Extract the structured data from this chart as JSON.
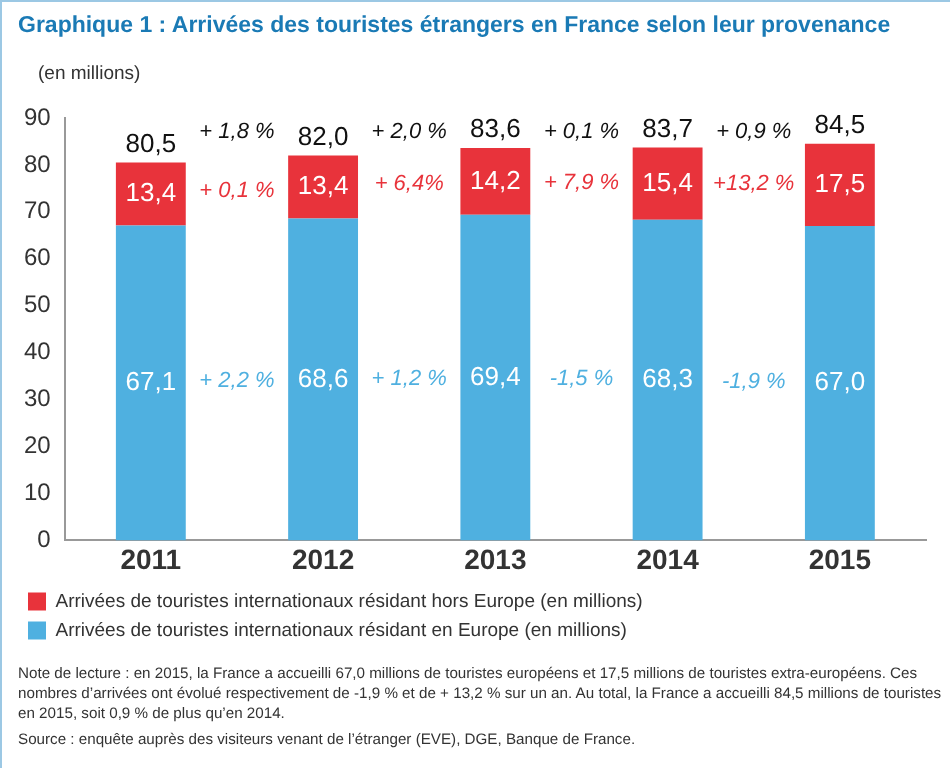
{
  "chart_data": {
    "type": "bar",
    "stacked": true,
    "title": "Graphique 1 : Arrivées des touristes étrangers en France selon leur provenance",
    "ylabel": "(en millions)",
    "categories": [
      "2011",
      "2012",
      "2013",
      "2014",
      "2015"
    ],
    "series": [
      {
        "name": "Arrivées de touristes internationaux résidant en Europe (en millions)",
        "color": "#4fb0e0",
        "values": [
          67.1,
          68.6,
          69.4,
          68.3,
          67.0
        ],
        "value_labels": [
          "67,1",
          "68,6",
          "69,4",
          "68,3",
          "67,0"
        ]
      },
      {
        "name": "Arrivées de touristes internationaux résidant hors Europe (en millions)",
        "color": "#e8333b",
        "values": [
          13.4,
          13.4,
          14.2,
          15.4,
          17.5
        ],
        "value_labels": [
          "13,4",
          "13,4",
          "14,2",
          "15,4",
          "17,5"
        ]
      }
    ],
    "totals": [
      "80,5",
      "82,0",
      "83,6",
      "83,7",
      "84,5"
    ],
    "ylim": [
      0,
      90
    ],
    "yticks": [
      0,
      10,
      20,
      30,
      40,
      50,
      60,
      70,
      80,
      90
    ],
    "grid": false,
    "legend": "bottom",
    "annotations": [
      "+ 1,8 %",
      "+ 2,0 %",
      "+ 0,1 %",
      "+ 0,9 %",
      "+ 0,1 %",
      "+ 6,4%",
      "+ 7,9 %",
      "+13,2 %",
      "+ 2,2 %",
      "+ 1,2 %",
      "-1,5 %",
      "-1,9 %",
      "Note de lecture : en 2015, la France a accueilli 67,0 millions de touristes européens et 17,5 millions de touristes extra-européens. Ces nombres d’arrivées ont évolué respectivement de -1,9 % et de + 13,2 % sur un an. Au total, la France a accueilli 84,5 millions de touristes en 2015, soit 0,9 % de plus qu’en 2014.",
      "Source : enquête auprès des visiteurs venant de l’étranger (EVE), DGE, Banque de France."
    ]
  }
}
